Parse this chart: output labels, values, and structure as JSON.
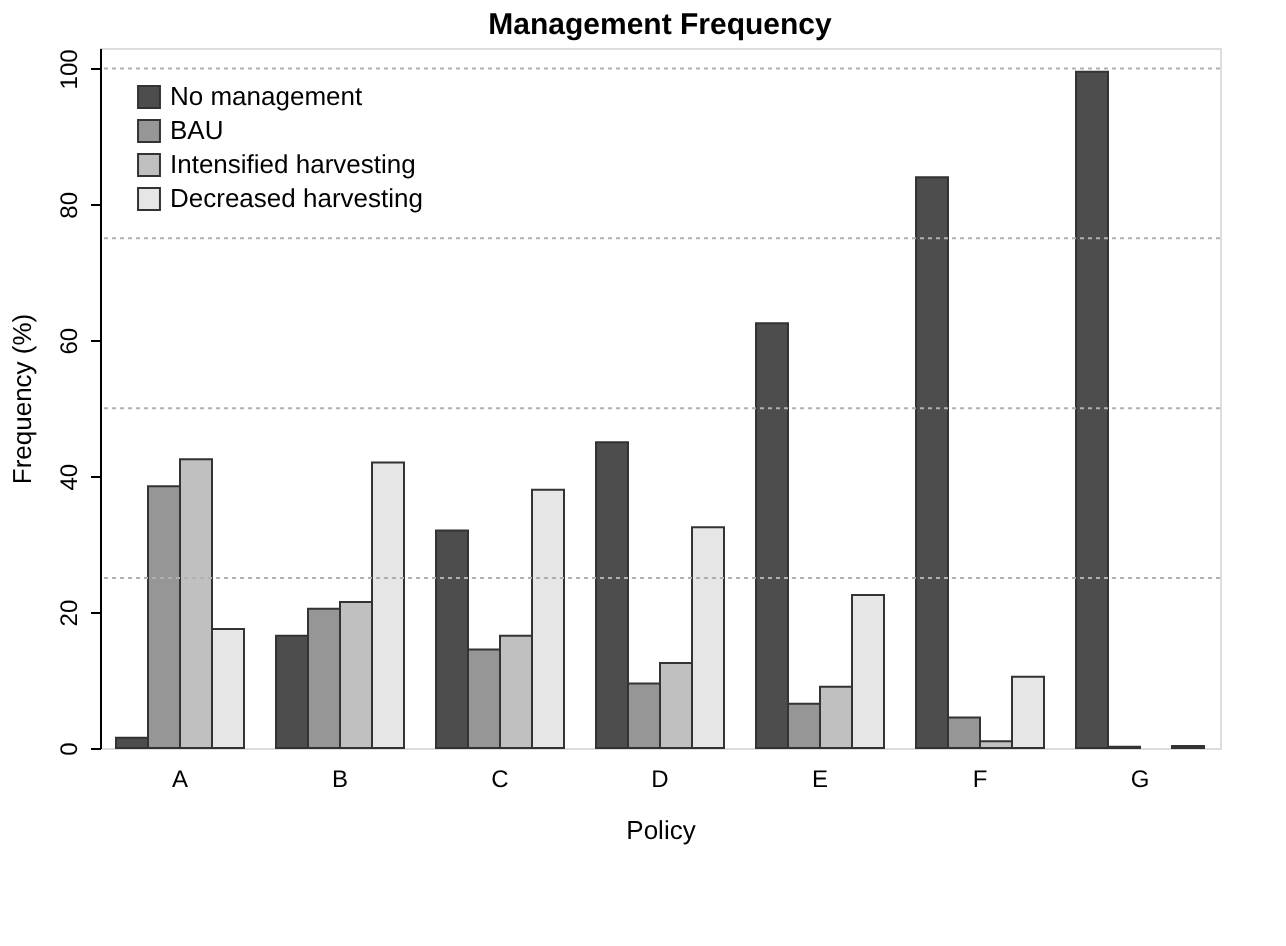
{
  "chart_data": {
    "type": "bar",
    "title": "Management Frequency",
    "xlabel": "Policy",
    "ylabel": "Frequency (%)",
    "categories": [
      "A",
      "B",
      "C",
      "D",
      "E",
      "F",
      "G"
    ],
    "series": [
      {
        "name": "No management",
        "color": "#4d4d4d",
        "values": [
          1.5,
          16.5,
          32,
          45,
          62.5,
          84,
          99.5
        ]
      },
      {
        "name": "BAU",
        "color": "#969696",
        "values": [
          38.5,
          20.5,
          14.5,
          9.5,
          6.5,
          4.5,
          0.2
        ]
      },
      {
        "name": "Intensified harvesting",
        "color": "#c0c0c0",
        "values": [
          42.5,
          21.5,
          16.5,
          12.5,
          9,
          1,
          null
        ]
      },
      {
        "name": "Decreased harvesting",
        "color": "#e6e6e6",
        "values": [
          17.5,
          42,
          38,
          32.5,
          22.5,
          10.5,
          0.3
        ]
      }
    ],
    "ylim": [
      0,
      103
    ],
    "yticks": [
      0,
      20,
      40,
      60,
      80,
      100
    ],
    "grid": false,
    "legend": "top left",
    "ref_lines": [
      {
        "axis": "y",
        "value": 25,
        "color": "#b0b0b0",
        "line_style": "dotted"
      },
      {
        "axis": "y",
        "value": 50,
        "color": "#b0b0b0",
        "line_style": "dotted"
      },
      {
        "axis": "y",
        "value": 75,
        "color": "#b0b0b0",
        "line_style": "dotted"
      },
      {
        "axis": "y",
        "value": 100,
        "color": "#b0b0b0",
        "line_style": "dotted"
      }
    ]
  }
}
